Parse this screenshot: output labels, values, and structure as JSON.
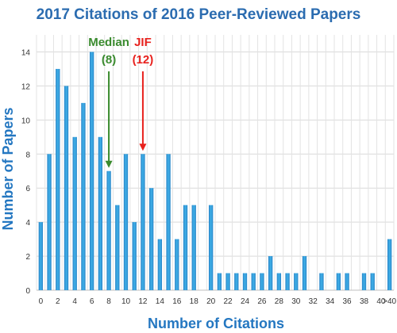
{
  "chart_data": {
    "type": "bar",
    "title": "2017 Citations of 2016 Peer-Reviewed Papers",
    "xlabel": "Number of Citations",
    "ylabel": "Number of Papers",
    "categories": [
      "0",
      "1",
      "2",
      "3",
      "4",
      "5",
      "6",
      "7",
      "8",
      "9",
      "10",
      "11",
      "12",
      "13",
      "14",
      "15",
      "16",
      "17",
      "18",
      "19",
      "20",
      "21",
      "22",
      "23",
      "24",
      "25",
      "26",
      "27",
      "28",
      "29",
      "30",
      "31",
      "32",
      "33",
      "34",
      "35",
      "36",
      "37",
      "38",
      "39",
      "40",
      ">40"
    ],
    "x_tick_labels": [
      "0",
      "2",
      "4",
      "6",
      "8",
      "10",
      "12",
      "14",
      "16",
      "18",
      "20",
      "22",
      "24",
      "26",
      "28",
      "30",
      "32",
      "34",
      "36",
      "38",
      "40",
      ">40"
    ],
    "values": [
      4,
      8,
      13,
      12,
      9,
      11,
      14,
      9,
      7,
      5,
      8,
      4,
      8,
      6,
      3,
      8,
      3,
      5,
      5,
      0,
      5,
      1,
      1,
      1,
      1,
      1,
      1,
      2,
      1,
      1,
      1,
      2,
      0,
      1,
      0,
      1,
      1,
      0,
      1,
      1,
      0,
      3
    ],
    "ylim": [
      0,
      15
    ],
    "y_ticks": [
      0,
      2,
      4,
      6,
      8,
      10,
      12,
      14
    ],
    "grid": true,
    "bar_color": "#2e9ad6",
    "annotations": [
      {
        "label_line1": "Median",
        "label_line2": "(8)",
        "at_category": "8",
        "color": "#3a8b2e"
      },
      {
        "label_line1": "JIF",
        "label_line2": "(12)",
        "at_category": "12",
        "color": "#e8211d"
      }
    ]
  }
}
